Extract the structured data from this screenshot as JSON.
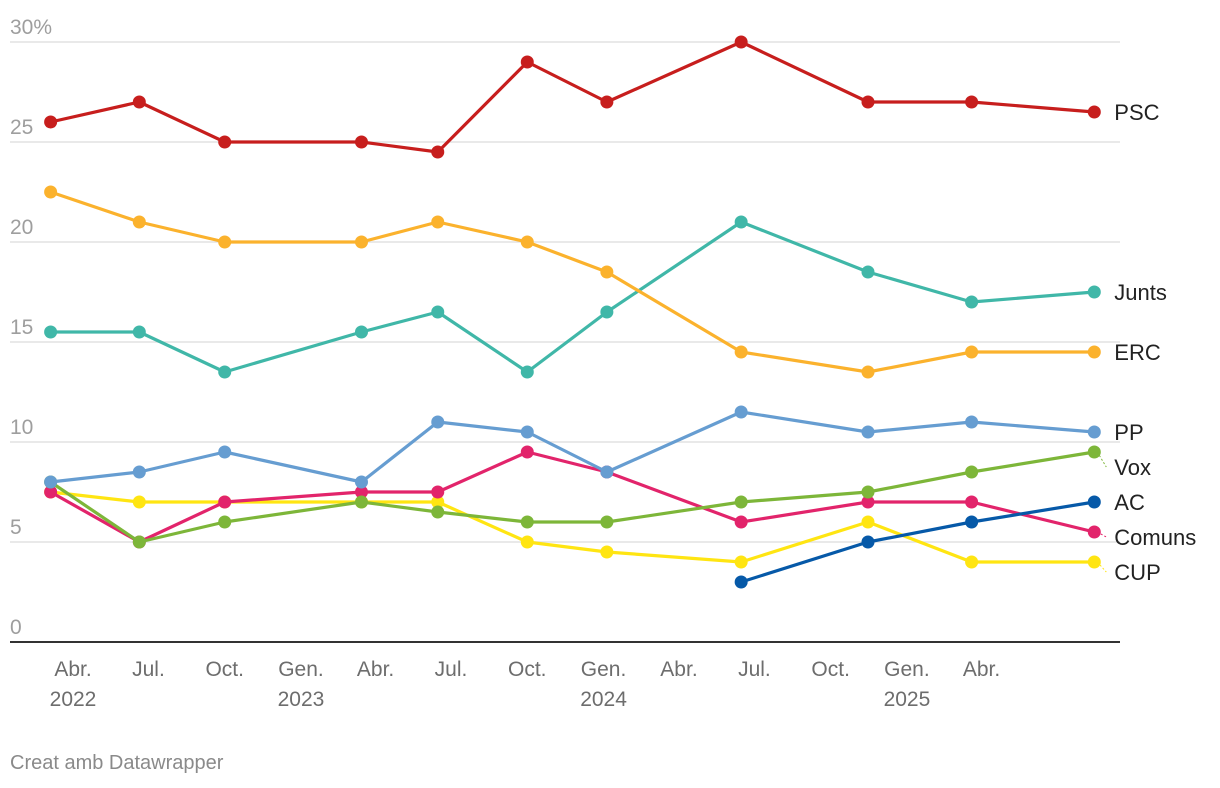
{
  "chart_data": {
    "type": "line",
    "ylim": [
      0,
      30
    ],
    "y_ticks": [
      {
        "value": 0,
        "label": "0"
      },
      {
        "value": 5,
        "label": "5"
      },
      {
        "value": 10,
        "label": "10"
      },
      {
        "value": 15,
        "label": "15"
      },
      {
        "value": 20,
        "label": "20"
      },
      {
        "value": 25,
        "label": "25"
      },
      {
        "value": 30,
        "label": "30%"
      }
    ],
    "x_range": [
      "2022-01-15",
      "2025-09-15"
    ],
    "x_ticks": [
      {
        "date": "2022-04-01",
        "label": "Abr.",
        "year": "2022"
      },
      {
        "date": "2022-07-01",
        "label": "Jul.",
        "year": ""
      },
      {
        "date": "2022-10-01",
        "label": "Oct.",
        "year": ""
      },
      {
        "date": "2023-01-01",
        "label": "Gen.",
        "year": "2023"
      },
      {
        "date": "2023-04-01",
        "label": "Abr.",
        "year": ""
      },
      {
        "date": "2023-07-01",
        "label": "Jul.",
        "year": ""
      },
      {
        "date": "2023-10-01",
        "label": "Oct.",
        "year": ""
      },
      {
        "date": "2024-01-01",
        "label": "Gen.",
        "year": "2024"
      },
      {
        "date": "2024-04-01",
        "label": "Abr.",
        "year": ""
      },
      {
        "date": "2024-07-01",
        "label": "Jul.",
        "year": ""
      },
      {
        "date": "2024-10-01",
        "label": "Oct.",
        "year": ""
      },
      {
        "date": "2025-01-01",
        "label": "Gen.",
        "year": "2025"
      },
      {
        "date": "2025-04-01",
        "label": "Abr.",
        "year": ""
      }
    ],
    "x": [
      "2022-03-05",
      "2022-06-20",
      "2022-10-01",
      "2023-03-15",
      "2023-06-15",
      "2023-10-01",
      "2024-01-05",
      "2024-06-15",
      "2024-11-15",
      "2025-03-20",
      "2025-08-15"
    ],
    "series": [
      {
        "name": "PSC",
        "color": "#c71e1d",
        "values": [
          26,
          27,
          25,
          25,
          24.5,
          29,
          27,
          30,
          27,
          27,
          26.5
        ]
      },
      {
        "name": "ERC",
        "color": "#fbb22d",
        "values": [
          22.5,
          21,
          20,
          20,
          21,
          20,
          18.5,
          14.5,
          13.5,
          14.5,
          14.5
        ]
      },
      {
        "name": "Junts",
        "color": "#40b7a8",
        "values": [
          15.5,
          15.5,
          13.5,
          15.5,
          16.5,
          13.5,
          16.5,
          21,
          18.5,
          17,
          17.5
        ]
      },
      {
        "name": "PP",
        "color": "#669dd1",
        "values": [
          8,
          8.5,
          9.5,
          8,
          11,
          10.5,
          8.5,
          11.5,
          10.5,
          11,
          10.5
        ]
      },
      {
        "name": "Vox",
        "color": "#7db639",
        "values": [
          8,
          5,
          6,
          7,
          6.5,
          6,
          6,
          7,
          7.5,
          8.5,
          9.5
        ]
      },
      {
        "name": "AC",
        "color": "#0659a8",
        "values": [
          null,
          null,
          null,
          null,
          null,
          null,
          null,
          3,
          5,
          6,
          7
        ]
      },
      {
        "name": "Comuns",
        "color": "#e2246b",
        "values": [
          7.5,
          5,
          7,
          7.5,
          7.5,
          9.5,
          8.5,
          6,
          7,
          7,
          5.5
        ]
      },
      {
        "name": "CUP",
        "color": "#ffe512",
        "values": [
          7.5,
          7,
          7,
          7,
          7,
          5,
          4.5,
          4,
          6,
          4,
          4
        ]
      }
    ]
  },
  "credit": "Creat amb Datawrapper"
}
